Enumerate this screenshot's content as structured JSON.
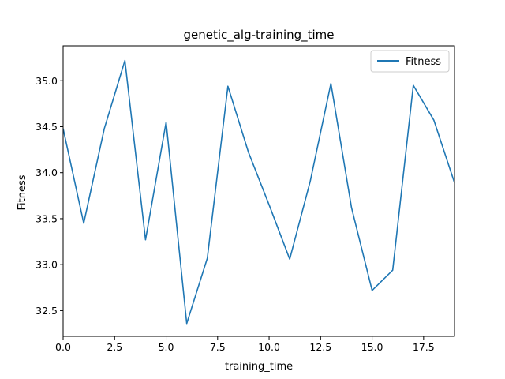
{
  "chart_data": {
    "type": "line",
    "title": "genetic_alg-training_time",
    "xlabel": "training_time",
    "ylabel": "Fitness",
    "xlim": [
      0,
      19
    ],
    "ylim": [
      32.22,
      35.38
    ],
    "xticks": [
      0,
      2.5,
      5,
      7.5,
      10,
      12.5,
      15,
      17.5
    ],
    "xtick_labels": [
      "0.0",
      "2.5",
      "5.0",
      "7.5",
      "10.0",
      "12.5",
      "15.0",
      "17.5"
    ],
    "yticks": [
      32.5,
      33.0,
      33.5,
      34.0,
      34.5,
      35.0
    ],
    "ytick_labels": [
      "32.5",
      "33.0",
      "33.5",
      "34.0",
      "34.5",
      "35.0"
    ],
    "grid": false,
    "legend": "top-right",
    "series": [
      {
        "name": "Fitness",
        "color": "#1f77b4",
        "x": [
          0,
          1,
          2,
          3,
          4,
          5,
          6,
          7,
          8,
          9,
          10,
          11,
          12,
          13,
          14,
          15,
          16,
          17,
          18,
          19
        ],
        "y": [
          34.48,
          33.45,
          34.48,
          35.22,
          33.27,
          34.55,
          32.36,
          33.07,
          34.94,
          34.22,
          33.65,
          33.06,
          33.91,
          34.97,
          33.62,
          32.72,
          32.94,
          34.95,
          34.57,
          33.89
        ]
      }
    ]
  }
}
